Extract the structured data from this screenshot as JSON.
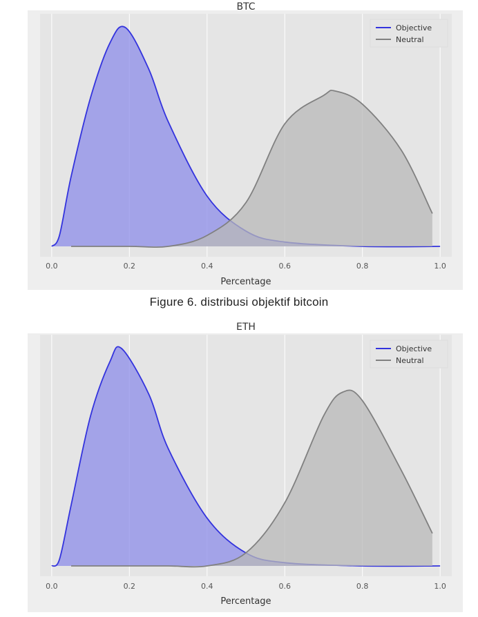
{
  "caption": "Figure 6. distribusi objektif bitcoin",
  "chart_data": [
    {
      "type": "area",
      "title": "BTC",
      "xlabel": "Percentage",
      "ylabel": "",
      "xlim": [
        -0.03,
        1.03
      ],
      "x_ticks": [
        "0.0",
        "0.2",
        "0.4",
        "0.6",
        "0.8",
        "1.0"
      ],
      "grid": true,
      "legend_position": "top-right",
      "series": [
        {
          "name": "Objective",
          "color": "#3333dd",
          "fill": "#8c8ce8",
          "x": [
            0.0,
            0.02,
            0.05,
            0.1,
            0.15,
            0.19,
            0.25,
            0.3,
            0.4,
            0.5,
            0.6,
            0.8,
            1.0
          ],
          "density": [
            0.0,
            0.05,
            0.32,
            0.68,
            0.93,
            1.0,
            0.81,
            0.57,
            0.23,
            0.07,
            0.02,
            0.0,
            0.0
          ]
        },
        {
          "name": "Neutral",
          "color": "#808080",
          "fill": "#b8b8b8",
          "x": [
            0.05,
            0.2,
            0.3,
            0.4,
            0.5,
            0.6,
            0.7,
            0.73,
            0.8,
            0.9,
            0.98
          ],
          "density": [
            0.0,
            0.0,
            0.0,
            0.05,
            0.2,
            0.56,
            0.69,
            0.71,
            0.65,
            0.44,
            0.15
          ]
        }
      ]
    },
    {
      "type": "area",
      "title": "ETH",
      "xlabel": "Percentage",
      "ylabel": "",
      "xlim": [
        -0.03,
        1.03
      ],
      "x_ticks": [
        "0.0",
        "0.2",
        "0.4",
        "0.6",
        "0.8",
        "1.0"
      ],
      "grid": true,
      "legend_position": "top-right",
      "series": [
        {
          "name": "Objective",
          "color": "#3333dd",
          "fill": "#8c8ce8",
          "x": [
            0.0,
            0.02,
            0.05,
            0.1,
            0.15,
            0.18,
            0.25,
            0.3,
            0.4,
            0.5,
            0.6,
            0.8,
            1.0
          ],
          "density": [
            0.0,
            0.03,
            0.28,
            0.69,
            0.94,
            1.0,
            0.79,
            0.54,
            0.22,
            0.06,
            0.015,
            0.0,
            0.0
          ]
        },
        {
          "name": "Neutral",
          "color": "#808080",
          "fill": "#b8b8b8",
          "x": [
            0.05,
            0.2,
            0.3,
            0.4,
            0.5,
            0.6,
            0.7,
            0.75,
            0.8,
            0.9,
            0.98
          ],
          "density": [
            0.0,
            0.0,
            0.0,
            0.0,
            0.06,
            0.29,
            0.69,
            0.8,
            0.76,
            0.44,
            0.15
          ]
        }
      ]
    }
  ]
}
